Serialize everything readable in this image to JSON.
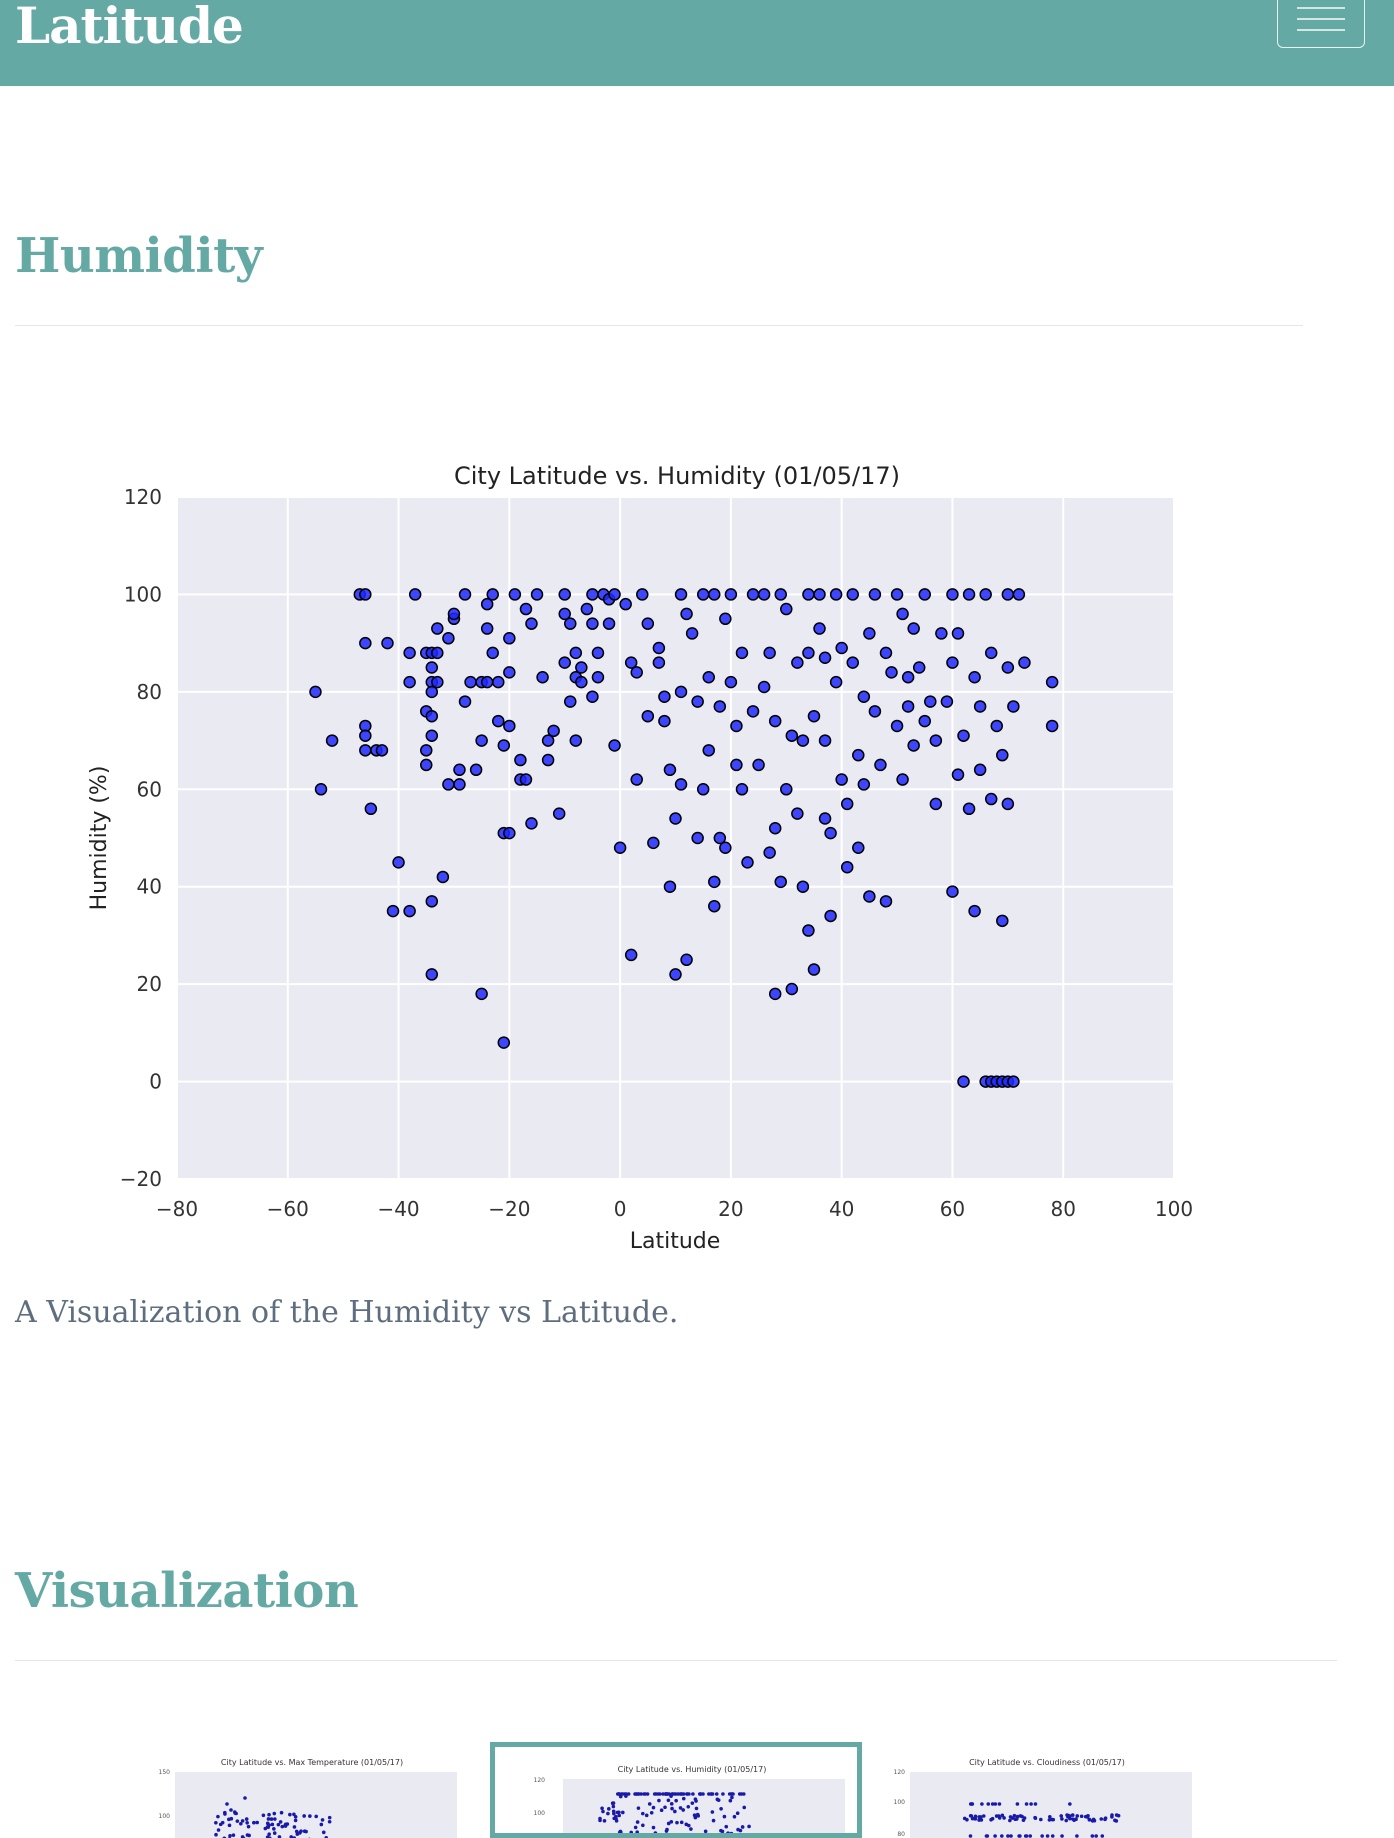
{
  "navbar": {
    "brand": "Latitude",
    "menu_icon": "hamburger-menu-icon"
  },
  "sections": {
    "humidity_title": "Humidity",
    "caption": "A Visualization of the Humidity vs Latitude.",
    "visualization_title": "Visualization"
  },
  "colors": {
    "brand": "#64a9a4",
    "marker": "#1f28ff",
    "plot_bg": "#eaeaf2",
    "caption": "#5e6e7e"
  },
  "chart_data": {
    "type": "scatter",
    "title": "City Latitude vs. Humidity (01/05/17)",
    "xlabel": "Latitude",
    "ylabel": "Humidity (%)",
    "xlim": [
      -80,
      100
    ],
    "ylim": [
      -20,
      120
    ],
    "xticks": [
      -80,
      -60,
      -40,
      -20,
      0,
      20,
      40,
      60,
      80,
      100
    ],
    "yticks": [
      -20,
      0,
      20,
      40,
      60,
      80,
      100,
      120
    ],
    "grid": true,
    "points": [
      [
        -55,
        80
      ],
      [
        -54,
        60
      ],
      [
        -52,
        70
      ],
      [
        -47,
        100
      ],
      [
        -46,
        100
      ],
      [
        -46,
        90
      ],
      [
        -46,
        73
      ],
      [
        -46,
        71
      ],
      [
        -46,
        68
      ],
      [
        -45,
        56
      ],
      [
        -44,
        68
      ],
      [
        -43,
        68
      ],
      [
        -42,
        90
      ],
      [
        -40,
        45
      ],
      [
        -41,
        35
      ],
      [
        -38,
        35
      ],
      [
        -38,
        88
      ],
      [
        -38,
        82
      ],
      [
        -37,
        100
      ],
      [
        -35,
        88
      ],
      [
        -35,
        76
      ],
      [
        -35,
        68
      ],
      [
        -35,
        65
      ],
      [
        -34,
        88
      ],
      [
        -34,
        85
      ],
      [
        -34,
        82
      ],
      [
        -34,
        80
      ],
      [
        -34,
        75
      ],
      [
        -34,
        71
      ],
      [
        -34,
        37
      ],
      [
        -34,
        22
      ],
      [
        -33,
        93
      ],
      [
        -33,
        88
      ],
      [
        -33,
        82
      ],
      [
        -32,
        42
      ],
      [
        -31,
        61
      ],
      [
        -31,
        91
      ],
      [
        -30,
        95
      ],
      [
        -30,
        96
      ],
      [
        -29,
        61
      ],
      [
        -29,
        64
      ],
      [
        -28,
        100
      ],
      [
        -28,
        78
      ],
      [
        -27,
        82
      ],
      [
        -26,
        64
      ],
      [
        -25,
        18
      ],
      [
        -25,
        70
      ],
      [
        -25,
        82
      ],
      [
        -24,
        82
      ],
      [
        -24,
        93
      ],
      [
        -24,
        98
      ],
      [
        -23,
        100
      ],
      [
        -23,
        88
      ],
      [
        -22,
        74
      ],
      [
        -22,
        82
      ],
      [
        -21,
        51
      ],
      [
        -21,
        8
      ],
      [
        -21,
        69
      ],
      [
        -20,
        73
      ],
      [
        -20,
        84
      ],
      [
        -20,
        91
      ],
      [
        -20,
        51
      ],
      [
        -19,
        100
      ],
      [
        -18,
        62
      ],
      [
        -18,
        66
      ],
      [
        -17,
        97
      ],
      [
        -17,
        62
      ],
      [
        -16,
        94
      ],
      [
        -16,
        53
      ],
      [
        -15,
        100
      ],
      [
        -14,
        83
      ],
      [
        -13,
        70
      ],
      [
        -13,
        66
      ],
      [
        -12,
        72
      ],
      [
        -11,
        55
      ],
      [
        -10,
        100
      ],
      [
        -10,
        96
      ],
      [
        -10,
        86
      ],
      [
        -9,
        78
      ],
      [
        -9,
        94
      ],
      [
        -8,
        88
      ],
      [
        -8,
        83
      ],
      [
        -8,
        70
      ],
      [
        -7,
        85
      ],
      [
        -7,
        82
      ],
      [
        -6,
        97
      ],
      [
        -5,
        100
      ],
      [
        -5,
        94
      ],
      [
        -5,
        79
      ],
      [
        -4,
        88
      ],
      [
        -4,
        83
      ],
      [
        -3,
        100
      ],
      [
        -2,
        99
      ],
      [
        -2,
        94
      ],
      [
        -1,
        69
      ],
      [
        -1,
        100
      ],
      [
        0,
        48
      ],
      [
        1,
        98
      ],
      [
        2,
        86
      ],
      [
        2,
        26
      ],
      [
        3,
        62
      ],
      [
        3,
        84
      ],
      [
        4,
        100
      ],
      [
        5,
        94
      ],
      [
        5,
        75
      ],
      [
        6,
        49
      ],
      [
        7,
        89
      ],
      [
        7,
        86
      ],
      [
        8,
        79
      ],
      [
        8,
        74
      ],
      [
        9,
        64
      ],
      [
        9,
        40
      ],
      [
        10,
        22
      ],
      [
        10,
        54
      ],
      [
        11,
        100
      ],
      [
        11,
        80
      ],
      [
        11,
        61
      ],
      [
        12,
        96
      ],
      [
        12,
        25
      ],
      [
        13,
        92
      ],
      [
        14,
        78
      ],
      [
        14,
        50
      ],
      [
        15,
        100
      ],
      [
        15,
        60
      ],
      [
        16,
        83
      ],
      [
        16,
        68
      ],
      [
        17,
        100
      ],
      [
        17,
        41
      ],
      [
        17,
        36
      ],
      [
        18,
        77
      ],
      [
        18,
        50
      ],
      [
        19,
        95
      ],
      [
        19,
        48
      ],
      [
        20,
        82
      ],
      [
        20,
        100
      ],
      [
        21,
        73
      ],
      [
        21,
        65
      ],
      [
        22,
        88
      ],
      [
        22,
        60
      ],
      [
        23,
        45
      ],
      [
        24,
        100
      ],
      [
        24,
        76
      ],
      [
        25,
        65
      ],
      [
        26,
        100
      ],
      [
        26,
        81
      ],
      [
        27,
        88
      ],
      [
        27,
        47
      ],
      [
        28,
        52
      ],
      [
        28,
        74
      ],
      [
        28,
        18
      ],
      [
        29,
        100
      ],
      [
        29,
        41
      ],
      [
        30,
        97
      ],
      [
        30,
        60
      ],
      [
        31,
        71
      ],
      [
        31,
        19
      ],
      [
        32,
        86
      ],
      [
        32,
        55
      ],
      [
        33,
        40
      ],
      [
        33,
        70
      ],
      [
        34,
        100
      ],
      [
        34,
        88
      ],
      [
        34,
        31
      ],
      [
        35,
        75
      ],
      [
        35,
        23
      ],
      [
        36,
        100
      ],
      [
        36,
        93
      ],
      [
        37,
        70
      ],
      [
        37,
        54
      ],
      [
        37,
        87
      ],
      [
        38,
        34
      ],
      [
        38,
        51
      ],
      [
        39,
        82
      ],
      [
        39,
        100
      ],
      [
        40,
        62
      ],
      [
        40,
        89
      ],
      [
        41,
        44
      ],
      [
        41,
        57
      ],
      [
        42,
        100
      ],
      [
        42,
        86
      ],
      [
        43,
        67
      ],
      [
        43,
        48
      ],
      [
        44,
        61
      ],
      [
        44,
        79
      ],
      [
        45,
        92
      ],
      [
        45,
        38
      ],
      [
        46,
        100
      ],
      [
        46,
        76
      ],
      [
        47,
        65
      ],
      [
        48,
        37
      ],
      [
        48,
        88
      ],
      [
        49,
        84
      ],
      [
        50,
        100
      ],
      [
        50,
        73
      ],
      [
        51,
        96
      ],
      [
        51,
        62
      ],
      [
        52,
        83
      ],
      [
        52,
        77
      ],
      [
        53,
        93
      ],
      [
        53,
        69
      ],
      [
        54,
        85
      ],
      [
        55,
        100
      ],
      [
        55,
        74
      ],
      [
        56,
        78
      ],
      [
        57,
        70
      ],
      [
        57,
        57
      ],
      [
        58,
        92
      ],
      [
        59,
        78
      ],
      [
        60,
        100
      ],
      [
        60,
        86
      ],
      [
        60,
        39
      ],
      [
        61,
        63
      ],
      [
        61,
        92
      ],
      [
        62,
        0
      ],
      [
        62,
        71
      ],
      [
        63,
        56
      ],
      [
        63,
        100
      ],
      [
        64,
        35
      ],
      [
        64,
        83
      ],
      [
        65,
        77
      ],
      [
        65,
        64
      ],
      [
        66,
        0
      ],
      [
        66,
        100
      ],
      [
        67,
        0
      ],
      [
        67,
        88
      ],
      [
        67,
        58
      ],
      [
        68,
        0
      ],
      [
        68,
        73
      ],
      [
        69,
        0
      ],
      [
        69,
        33
      ],
      [
        69,
        67
      ],
      [
        70,
        0
      ],
      [
        70,
        100
      ],
      [
        70,
        85
      ],
      [
        70,
        57
      ],
      [
        71,
        0
      ],
      [
        71,
        77
      ],
      [
        72,
        100
      ],
      [
        73,
        86
      ],
      [
        78,
        82
      ],
      [
        78,
        73
      ]
    ]
  },
  "thumbnails": [
    {
      "title": "City Latitude vs. Max Temperature (01/05/17)",
      "yticks": [
        "150",
        "100"
      ]
    },
    {
      "title": "City Latitude vs. Humidity (01/05/17)",
      "yticks": [
        "120",
        "100"
      ]
    },
    {
      "title": "City Latitude vs. Cloudiness (01/05/17)",
      "yticks": [
        "120",
        "100",
        "80"
      ]
    }
  ]
}
